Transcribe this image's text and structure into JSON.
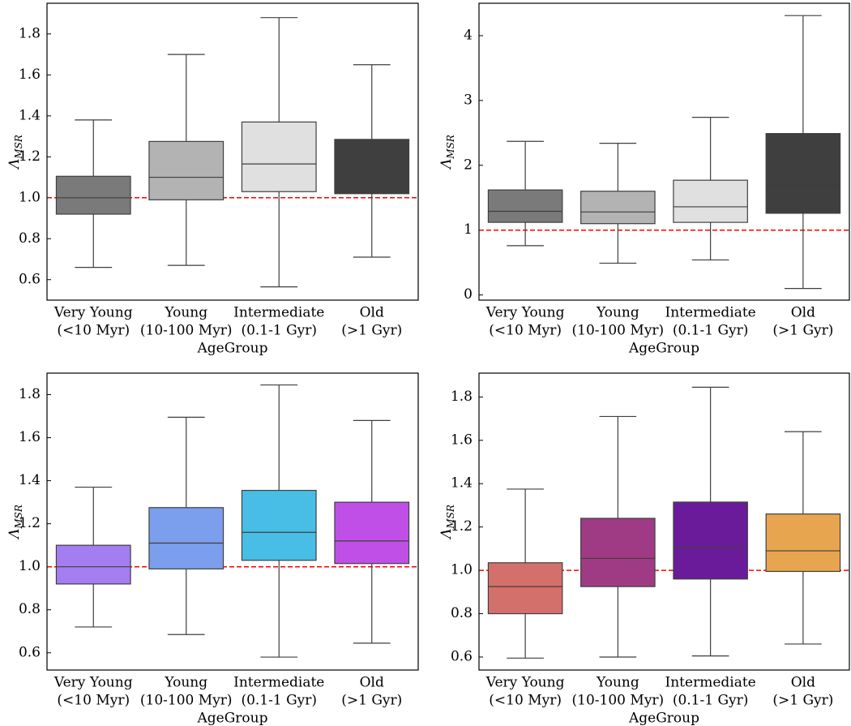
{
  "chart_data": [
    {
      "type": "box",
      "ylabel": "Λ",
      "ylabel_sub": "MSR",
      "xlabel": "AgeGroup",
      "categories": [
        [
          "Very Young",
          "(<10 Myr)"
        ],
        [
          "Young",
          "(10-100 Myr)"
        ],
        [
          "Intermediate",
          "(0.1-1 Gyr)"
        ],
        [
          "Old",
          "(>1 Gyr)"
        ]
      ],
      "boxes": [
        {
          "whislo": 0.66,
          "q1": 0.92,
          "med": 1.0,
          "q3": 1.105,
          "whishi": 1.38,
          "color": "#7a7a7a"
        },
        {
          "whislo": 0.67,
          "q1": 0.99,
          "med": 1.1,
          "q3": 1.275,
          "whishi": 1.7,
          "color": "#b3b3b3"
        },
        {
          "whislo": 0.565,
          "q1": 1.03,
          "med": 1.165,
          "q3": 1.37,
          "whishi": 1.88,
          "color": "#e0e0e0"
        },
        {
          "whislo": 0.71,
          "q1": 1.02,
          "med": 1.13,
          "q3": 1.285,
          "whishi": 1.65,
          "color": "#3f3f3f"
        }
      ],
      "reference_line": 1,
      "reference_color": "#ff0000",
      "ylim": [
        0.5,
        1.95
      ],
      "yticks": [
        0.6,
        0.8,
        {
          "value": 1,
          "label": "1.0"
        },
        1.2,
        1.4,
        1.6,
        1.8
      ]
    },
    {
      "type": "box",
      "ylabel": "Λ",
      "ylabel_sub": "MSR",
      "xlabel": "AgeGroup",
      "categories": [
        [
          "Very Young",
          "(<10 Myr)"
        ],
        [
          "Young",
          "(10-100 Myr)"
        ],
        [
          "Intermediate",
          "(0.1-1 Gyr)"
        ],
        [
          "Old",
          "(>1 Gyr)"
        ]
      ],
      "boxes": [
        {
          "whislo": 0.76,
          "q1": 1.12,
          "med": 1.29,
          "q3": 1.62,
          "whishi": 2.37,
          "color": "#7a7a7a"
        },
        {
          "whislo": 0.49,
          "q1": 1.1,
          "med": 1.28,
          "q3": 1.6,
          "whishi": 2.34,
          "color": "#b3b3b3"
        },
        {
          "whislo": 0.54,
          "q1": 1.12,
          "med": 1.36,
          "q3": 1.77,
          "whishi": 2.74,
          "color": "#e0e0e0"
        },
        {
          "whislo": 0.1,
          "q1": 1.26,
          "med": 1.7,
          "q3": 2.49,
          "whishi": 4.31,
          "color": "#3f3f3f"
        }
      ],
      "reference_line": 1,
      "reference_color": "#ff0000",
      "ylim": [
        -0.08,
        4.5
      ],
      "yticks": [
        0,
        1,
        2,
        3,
        4
      ]
    },
    {
      "type": "box",
      "ylabel": "Λ",
      "ylabel_sub": "MSR",
      "xlabel": "AgeGroup",
      "categories": [
        [
          "Very Young",
          "(<10 Myr)"
        ],
        [
          "Young",
          "(10-100 Myr)"
        ],
        [
          "Intermediate",
          "(0.1-1 Gyr)"
        ],
        [
          "Old",
          "(>1 Gyr)"
        ]
      ],
      "boxes": [
        {
          "whislo": 0.72,
          "q1": 0.92,
          "med": 1.0,
          "q3": 1.1,
          "whishi": 1.37,
          "color": "#a47ef0"
        },
        {
          "whislo": 0.685,
          "q1": 0.99,
          "med": 1.11,
          "q3": 1.275,
          "whishi": 1.695,
          "color": "#7b9fec"
        },
        {
          "whislo": 0.58,
          "q1": 1.03,
          "med": 1.16,
          "q3": 1.355,
          "whishi": 1.845,
          "color": "#48bde5"
        },
        {
          "whislo": 0.645,
          "q1": 1.015,
          "med": 1.12,
          "q3": 1.3,
          "whishi": 1.68,
          "color": "#c04fe8"
        }
      ],
      "reference_line": 1,
      "reference_color": "#ff0000",
      "ylim": [
        0.52,
        1.9
      ],
      "yticks": [
        0.6,
        0.8,
        {
          "value": 1,
          "label": "1.0"
        },
        1.2,
        1.4,
        1.6,
        1.8
      ]
    },
    {
      "type": "box",
      "ylabel": "Λ",
      "ylabel_sub": "MSR",
      "xlabel": "AgeGroup",
      "categories": [
        [
          "Very Young",
          "(<10 Myr)"
        ],
        [
          "Young",
          "(10-100 Myr)"
        ],
        [
          "Intermediate",
          "(0.1-1 Gyr)"
        ],
        [
          "Old",
          "(>1 Gyr)"
        ]
      ],
      "boxes": [
        {
          "whislo": 0.595,
          "q1": 0.8,
          "med": 0.925,
          "q3": 1.035,
          "whishi": 1.375,
          "color": "#d4706b"
        },
        {
          "whislo": 0.6,
          "q1": 0.925,
          "med": 1.055,
          "q3": 1.24,
          "whishi": 1.71,
          "color": "#9f3b84"
        },
        {
          "whislo": 0.605,
          "q1": 0.96,
          "med": 1.105,
          "q3": 1.315,
          "whishi": 1.845,
          "color": "#6a1b9a"
        },
        {
          "whislo": 0.66,
          "q1": 0.995,
          "med": 1.09,
          "q3": 1.26,
          "whishi": 1.64,
          "color": "#e8a54f"
        }
      ],
      "reference_line": 1,
      "reference_color": "#ff0000",
      "ylim": [
        0.54,
        1.91
      ],
      "yticks": [
        0.6,
        0.8,
        {
          "value": 1,
          "label": "1.0"
        },
        1.2,
        1.4,
        1.6,
        1.8
      ]
    }
  ]
}
